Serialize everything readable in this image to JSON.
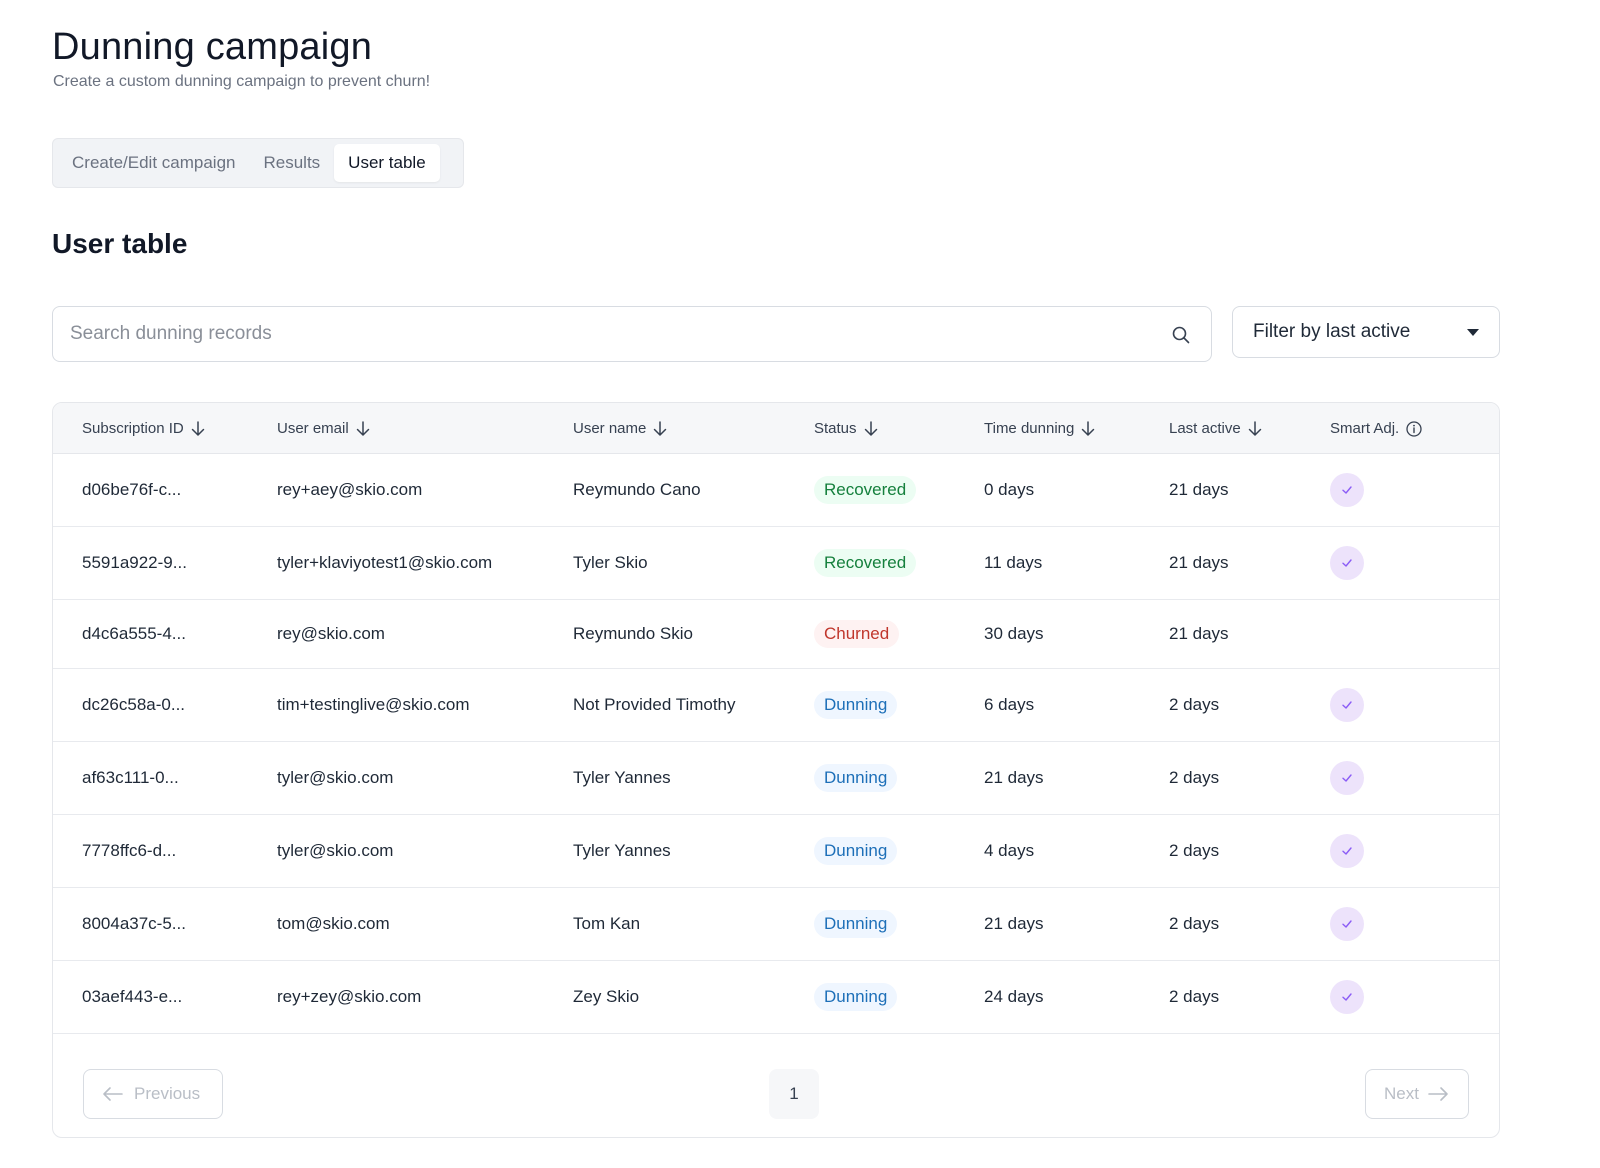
{
  "page": {
    "title": "Dunning campaign",
    "subtitle": "Create a custom dunning campaign to prevent churn!"
  },
  "tabs": [
    {
      "label": "Create/Edit campaign",
      "active": false
    },
    {
      "label": "Results",
      "active": false
    },
    {
      "label": "User table",
      "active": true
    }
  ],
  "section": {
    "title": "User table"
  },
  "search": {
    "placeholder": "Search dunning records",
    "value": "",
    "icon": "search-icon"
  },
  "filter": {
    "label": "Filter by last active",
    "icon": "caret-down-icon"
  },
  "table": {
    "columns": [
      {
        "label": "Subscription ID",
        "icon": "arrow-down-icon"
      },
      {
        "label": "User email",
        "icon": "arrow-down-icon"
      },
      {
        "label": "User name",
        "icon": "arrow-down-icon"
      },
      {
        "label": "Status",
        "icon": "arrow-down-icon"
      },
      {
        "label": "Time dunning",
        "icon": "arrow-down-icon"
      },
      {
        "label": "Last active",
        "icon": "arrow-down-icon"
      },
      {
        "label": "Smart Adj.",
        "icon": "info-icon"
      }
    ],
    "rows": [
      {
        "id": "d06be76f-c...",
        "email": "rey+aey@skio.com",
        "name": "Reymundo Cano",
        "status": "Recovered",
        "time_dunning": "0 days",
        "last_active": "21 days",
        "smart_adj": true
      },
      {
        "id": "5591a922-9...",
        "email": "tyler+klaviyotest1@skio.com",
        "name": "Tyler Skio",
        "status": "Recovered",
        "time_dunning": "11 days",
        "last_active": "21 days",
        "smart_adj": true
      },
      {
        "id": "d4c6a555-4...",
        "email": "rey@skio.com",
        "name": "Reymundo Skio",
        "status": "Churned",
        "time_dunning": "30 days",
        "last_active": "21 days",
        "smart_adj": false
      },
      {
        "id": "dc26c58a-0...",
        "email": "tim+testinglive@skio.com",
        "name": "Not Provided Timothy",
        "status": "Dunning",
        "time_dunning": "6 days",
        "last_active": "2 days",
        "smart_adj": true
      },
      {
        "id": "af63c111-0...",
        "email": "tyler@skio.com",
        "name": "Tyler Yannes",
        "status": "Dunning",
        "time_dunning": "21 days",
        "last_active": "2 days",
        "smart_adj": true
      },
      {
        "id": "7778ffc6-d...",
        "email": "tyler@skio.com",
        "name": "Tyler Yannes",
        "status": "Dunning",
        "time_dunning": "4 days",
        "last_active": "2 days",
        "smart_adj": true
      },
      {
        "id": "8004a37c-5...",
        "email": "tom@skio.com",
        "name": "Tom Kan",
        "status": "Dunning",
        "time_dunning": "21 days",
        "last_active": "2 days",
        "smart_adj": true
      },
      {
        "id": "03aef443-e...",
        "email": "rey+zey@skio.com",
        "name": "Zey Skio",
        "status": "Dunning",
        "time_dunning": "24 days",
        "last_active": "2 days",
        "smart_adj": true
      }
    ]
  },
  "pagination": {
    "previous_label": "Previous",
    "next_label": "Next",
    "current_page": "1"
  },
  "colors": {
    "recovered": "#15803d",
    "churned": "#c0362c",
    "dunning": "#1d6fb8",
    "smart_adj_check": "#8b5cf6"
  }
}
